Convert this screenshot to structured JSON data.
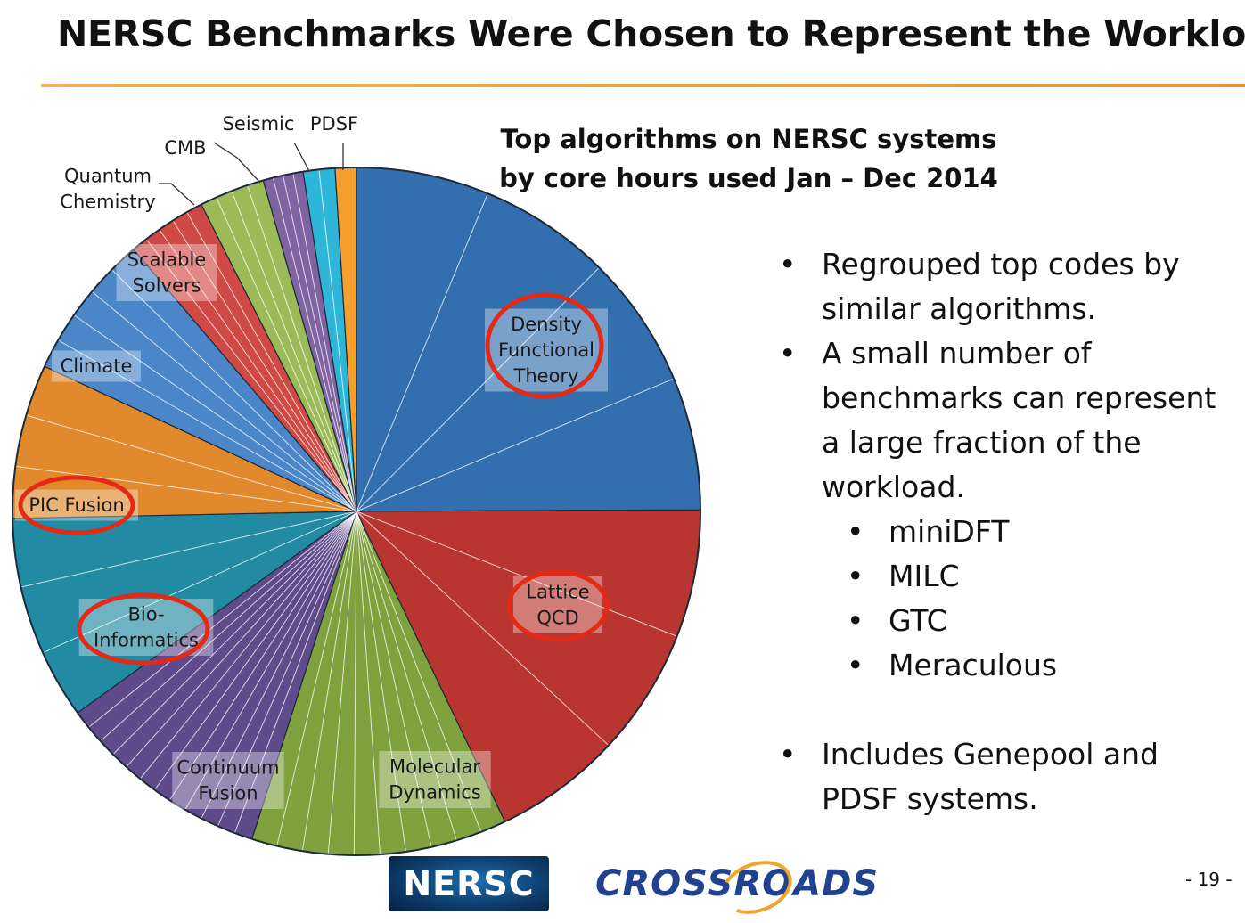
{
  "slide": {
    "title": "NERSC Benchmarks Were Chosen to Represent the Workload",
    "page_number": "- 19 -"
  },
  "bullets": [
    {
      "text": "Regrouped top codes by similar algorithms.",
      "level": 1
    },
    {
      "text": "A small number of benchmarks can represent a large fraction of the workload.",
      "level": 1
    },
    {
      "text": "miniDFT",
      "level": 2
    },
    {
      "text": "MILC",
      "level": 2
    },
    {
      "text": "GTC",
      "level": 2
    },
    {
      "text": "Meraculous",
      "level": 2
    },
    {
      "text": "Includes Genepool and PDSF systems.",
      "level": 1
    }
  ],
  "logos": {
    "nersc": "NERSC",
    "crossroads": "CROSSROADS"
  },
  "chart_data": {
    "type": "pie",
    "title": "Top algorithms on NERSC systems by core hours used Jan – Dec 2014",
    "start_angle_deg": 0,
    "direction": "clockwise",
    "slices": [
      {
        "label": "Density Functional Theory",
        "value": 25.1,
        "color": "#336fae",
        "circled": true,
        "sub_divisions": 4
      },
      {
        "label": "Lattice QCD",
        "value": 18.1,
        "color": "#b8362f",
        "circled": true,
        "sub_divisions": 3
      },
      {
        "label": "Molecular Dynamics",
        "value": 12.1,
        "color": "#7fa23f",
        "circled": false,
        "sub_divisions": 10
      },
      {
        "label": "Continuum Fusion",
        "value": 10.2,
        "color": "#5f4b8b",
        "circled": false,
        "sub_divisions": 12
      },
      {
        "label": "Bio-Informatics",
        "value": 9.7,
        "color": "#228aa3",
        "circled": true,
        "sub_divisions": 3
      },
      {
        "label": "PIC Fusion",
        "value": 7.3,
        "color": "#e1892d",
        "circled": true,
        "sub_divisions": 3
      },
      {
        "label": "Climate",
        "value": 6.9,
        "color": "#4a86c8",
        "circled": false,
        "sub_divisions": 5
      },
      {
        "label": "Scalable Solvers",
        "value": 3.8,
        "color": "#cf4a45",
        "circled": false,
        "sub_divisions": 5
      },
      {
        "label": "Quantum Chemistry",
        "value": 3.1,
        "color": "#9bbb59",
        "circled": false,
        "sub_divisions": 4
      },
      {
        "label": "CMB",
        "value": 1.9,
        "color": "#8064a2",
        "circled": false,
        "sub_divisions": 4
      },
      {
        "label": "Seismic",
        "value": 1.5,
        "color": "#2eb6d8",
        "circled": false,
        "sub_divisions": 2
      },
      {
        "label": "PDSF",
        "value": 1.0,
        "color": "#f79f2e",
        "circled": false,
        "sub_divisions": 1
      }
    ],
    "label_lines": {
      "Density Functional Theory": [
        "Density",
        "Functional",
        "Theory"
      ],
      "Lattice QCD": [
        "Lattice",
        "QCD"
      ],
      "Molecular Dynamics": [
        "Molecular",
        "Dynamics"
      ],
      "Continuum Fusion": [
        "Continuum",
        "Fusion"
      ],
      "Bio-Informatics": [
        "Bio-",
        "Informatics"
      ],
      "PIC Fusion": [
        "PIC Fusion"
      ],
      "Climate": [
        "Climate"
      ],
      "Scalable Solvers": [
        "Scalable",
        "Solvers"
      ],
      "Quantum Chemistry": [
        "Quantum",
        "Chemistry"
      ],
      "CMB": [
        "CMB"
      ],
      "Seismic": [
        "Seismic"
      ],
      "PDSF": [
        "PDSF"
      ]
    },
    "legend": "none",
    "highlight_color": "#e32a16"
  }
}
